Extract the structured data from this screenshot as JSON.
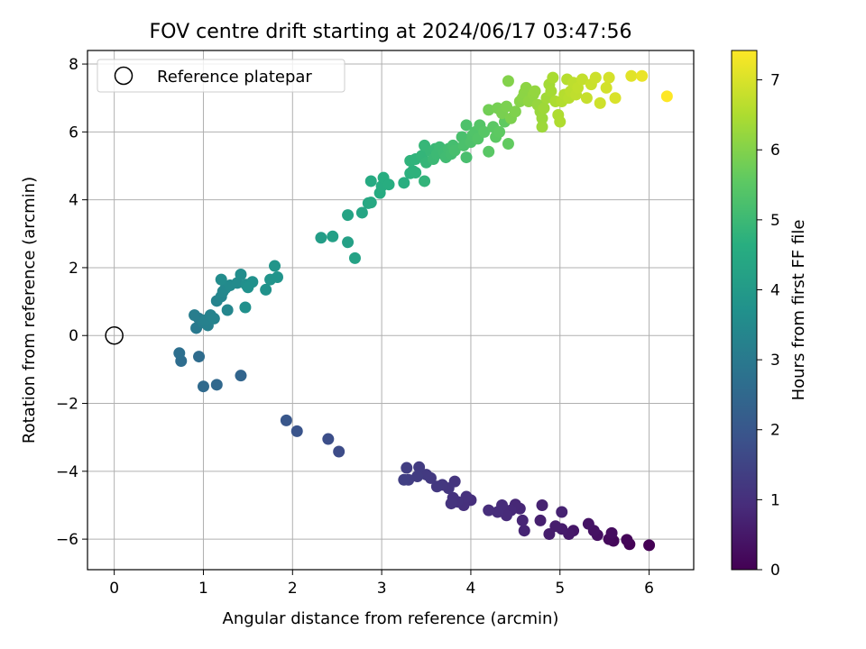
{
  "chart_data": {
    "type": "scatter",
    "title": "FOV centre drift starting at 2024/06/17 03:47:56",
    "xlabel": "Angular distance from reference (arcmin)",
    "ylabel": "Rotation from reference (arcmin)",
    "xlim": [
      -0.3,
      6.5
    ],
    "ylim": [
      -6.9,
      8.4
    ],
    "x_ticks": [
      0,
      1,
      2,
      3,
      4,
      5,
      6
    ],
    "y_ticks": [
      -6,
      -4,
      -2,
      0,
      2,
      4,
      6,
      8
    ],
    "x_tick_labels": [
      "0",
      "1",
      "2",
      "3",
      "4",
      "5",
      "6"
    ],
    "y_tick_labels": [
      "−6",
      "−4",
      "−2",
      "0",
      "2",
      "4",
      "6",
      "8"
    ],
    "grid": true,
    "colormap": "viridis",
    "legend": {
      "placement": "top-left",
      "entries": [
        {
          "label": "Reference platepar",
          "marker": "open-circle"
        }
      ]
    },
    "reference_point": {
      "x": 0,
      "y": 0
    },
    "colorbar": {
      "label": "Hours from first FF file",
      "range": [
        0,
        7.42
      ],
      "ticks": [
        0,
        1,
        2,
        3,
        4,
        5,
        6,
        7
      ],
      "tick_labels": [
        "0",
        "1",
        "2",
        "3",
        "4",
        "5",
        "6",
        "7"
      ]
    },
    "points": [
      [
        6.0,
        -6.18,
        0.0
      ],
      [
        5.78,
        -6.15,
        0.05
      ],
      [
        5.75,
        -6.02,
        0.1
      ],
      [
        5.6,
        -6.05,
        0.15
      ],
      [
        5.55,
        -6.0,
        0.2
      ],
      [
        5.58,
        -5.82,
        0.25
      ],
      [
        5.42,
        -5.88,
        0.3
      ],
      [
        5.38,
        -5.75,
        0.35
      ],
      [
        5.32,
        -5.55,
        0.4
      ],
      [
        5.15,
        -5.75,
        0.45
      ],
      [
        5.1,
        -5.85,
        0.5
      ],
      [
        5.02,
        -5.7,
        0.55
      ],
      [
        4.95,
        -5.62,
        0.58
      ],
      [
        4.88,
        -5.85,
        0.6
      ],
      [
        4.78,
        -5.45,
        0.65
      ],
      [
        4.8,
        -5.0,
        0.7
      ],
      [
        5.02,
        -5.2,
        0.72
      ],
      [
        4.6,
        -5.75,
        0.75
      ],
      [
        4.58,
        -5.45,
        0.78
      ],
      [
        4.55,
        -5.1,
        0.8
      ],
      [
        4.5,
        -4.98,
        0.82
      ],
      [
        4.45,
        -5.15,
        0.85
      ],
      [
        4.4,
        -5.3,
        0.88
      ],
      [
        4.35,
        -5.0,
        0.9
      ],
      [
        4.3,
        -5.2,
        0.92
      ],
      [
        4.2,
        -5.15,
        0.95
      ],
      [
        4.0,
        -4.85,
        0.98
      ],
      [
        3.92,
        -5.0,
        1.0
      ],
      [
        3.95,
        -4.75,
        1.02
      ],
      [
        3.85,
        -4.9,
        1.05
      ],
      [
        3.8,
        -4.78,
        1.08
      ],
      [
        3.78,
        -4.95,
        1.1
      ],
      [
        3.82,
        -4.3,
        1.12
      ],
      [
        3.75,
        -4.5,
        1.15
      ],
      [
        3.68,
        -4.4,
        1.18
      ],
      [
        3.62,
        -4.45,
        1.2
      ],
      [
        3.55,
        -4.2,
        1.22
      ],
      [
        3.5,
        -4.1,
        1.25
      ],
      [
        3.42,
        -3.88,
        1.28
      ],
      [
        3.4,
        -4.15,
        1.3
      ],
      [
        3.3,
        -4.25,
        1.32
      ],
      [
        3.28,
        -3.9,
        1.35
      ],
      [
        3.25,
        -4.25,
        1.38
      ],
      [
        2.52,
        -3.42,
        1.7
      ],
      [
        2.4,
        -3.05,
        1.75
      ],
      [
        2.05,
        -2.82,
        1.9
      ],
      [
        1.93,
        -2.5,
        2.0
      ],
      [
        1.42,
        -1.18,
        2.4
      ],
      [
        1.15,
        -1.45,
        2.5
      ],
      [
        1.0,
        -1.5,
        2.55
      ],
      [
        0.95,
        -0.62,
        2.6
      ],
      [
        0.75,
        -0.75,
        2.65
      ],
      [
        0.73,
        -0.52,
        2.7
      ],
      [
        0.92,
        0.22,
        3.0
      ],
      [
        0.95,
        0.5,
        3.05
      ],
      [
        0.9,
        0.6,
        3.1
      ],
      [
        1.0,
        0.38,
        3.15
      ],
      [
        1.05,
        0.3,
        3.2
      ],
      [
        1.02,
        0.45,
        3.22
      ],
      [
        1.08,
        0.6,
        3.25
      ],
      [
        1.12,
        0.5,
        3.28
      ],
      [
        1.15,
        1.02,
        3.3
      ],
      [
        1.2,
        1.15,
        3.35
      ],
      [
        1.27,
        0.75,
        3.38
      ],
      [
        1.22,
        1.3,
        3.4
      ],
      [
        1.25,
        1.4,
        3.45
      ],
      [
        1.3,
        1.48,
        3.5
      ],
      [
        1.38,
        1.55,
        3.52
      ],
      [
        1.2,
        1.65,
        3.55
      ],
      [
        1.42,
        1.8,
        3.6
      ],
      [
        1.48,
        1.5,
        3.65
      ],
      [
        1.47,
        0.83,
        3.68
      ],
      [
        1.55,
        1.58,
        3.7
      ],
      [
        1.5,
        1.42,
        3.72
      ],
      [
        1.7,
        1.35,
        3.75
      ],
      [
        1.75,
        1.65,
        3.8
      ],
      [
        1.83,
        1.72,
        3.82
      ],
      [
        1.8,
        2.05,
        3.85
      ],
      [
        2.32,
        2.88,
        4.1
      ],
      [
        2.45,
        2.92,
        4.15
      ],
      [
        2.62,
        2.75,
        4.2
      ],
      [
        2.7,
        2.28,
        4.25
      ],
      [
        2.62,
        3.55,
        4.3
      ],
      [
        2.78,
        3.62,
        4.35
      ],
      [
        2.85,
        3.9,
        4.4
      ],
      [
        2.88,
        3.92,
        4.45
      ],
      [
        2.88,
        4.55,
        4.5
      ],
      [
        2.98,
        4.2,
        4.55
      ],
      [
        3.0,
        4.4,
        4.58
      ],
      [
        3.02,
        4.65,
        4.6
      ],
      [
        3.08,
        4.45,
        4.62
      ],
      [
        3.25,
        4.5,
        4.65
      ],
      [
        3.32,
        4.78,
        4.7
      ],
      [
        3.35,
        4.85,
        4.72
      ],
      [
        3.38,
        4.8,
        4.75
      ],
      [
        3.32,
        5.15,
        4.78
      ],
      [
        3.38,
        5.2,
        4.8
      ],
      [
        3.48,
        4.55,
        4.82
      ],
      [
        3.45,
        5.3,
        4.85
      ],
      [
        3.5,
        5.1,
        4.88
      ],
      [
        3.48,
        5.6,
        4.9
      ],
      [
        3.55,
        5.42,
        4.92
      ],
      [
        3.6,
        5.5,
        4.95
      ],
      [
        3.58,
        5.2,
        4.98
      ],
      [
        3.62,
        5.35,
        5.0
      ],
      [
        3.65,
        5.55,
        5.02
      ],
      [
        3.7,
        5.4,
        5.05
      ],
      [
        3.72,
        5.25,
        5.08
      ],
      [
        3.75,
        5.5,
        5.1
      ],
      [
        3.78,
        5.35,
        5.12
      ],
      [
        3.8,
        5.6,
        5.15
      ],
      [
        3.82,
        5.45,
        5.18
      ],
      [
        3.95,
        5.25,
        5.2
      ],
      [
        3.9,
        5.85,
        5.22
      ],
      [
        3.92,
        5.6,
        5.25
      ],
      [
        3.95,
        6.2,
        5.28
      ],
      [
        4.0,
        5.7,
        5.3
      ],
      [
        4.02,
        5.9,
        5.32
      ],
      [
        4.05,
        6.0,
        5.35
      ],
      [
        4.08,
        5.8,
        5.38
      ],
      [
        4.1,
        6.2,
        5.4
      ],
      [
        4.15,
        6.0,
        5.45
      ],
      [
        4.2,
        5.42,
        5.48
      ],
      [
        4.25,
        6.15,
        5.5
      ],
      [
        4.28,
        5.85,
        5.52
      ],
      [
        4.32,
        6.0,
        5.55
      ],
      [
        4.38,
        6.3,
        5.58
      ],
      [
        4.42,
        5.65,
        5.6
      ],
      [
        4.2,
        6.65,
        5.8
      ],
      [
        4.3,
        6.7,
        5.85
      ],
      [
        4.35,
        6.55,
        5.88
      ],
      [
        4.4,
        6.75,
        5.9
      ],
      [
        4.45,
        6.4,
        5.92
      ],
      [
        4.5,
        6.6,
        5.95
      ],
      [
        4.42,
        7.5,
        6.0
      ],
      [
        4.55,
        6.9,
        6.05
      ],
      [
        4.58,
        7.0,
        6.08
      ],
      [
        4.6,
        7.15,
        6.1
      ],
      [
        4.62,
        7.3,
        6.12
      ],
      [
        4.65,
        6.9,
        6.15
      ],
      [
        4.7,
        7.1,
        6.18
      ],
      [
        4.72,
        7.2,
        6.2
      ],
      [
        4.75,
        6.8,
        6.22
      ],
      [
        4.78,
        6.6,
        6.25
      ],
      [
        4.8,
        6.4,
        6.28
      ],
      [
        4.8,
        6.15,
        6.3
      ],
      [
        4.82,
        6.7,
        6.32
      ],
      [
        4.85,
        7.0,
        6.35
      ],
      [
        4.88,
        7.4,
        6.38
      ],
      [
        4.9,
        7.2,
        6.4
      ],
      [
        4.92,
        7.6,
        6.45
      ],
      [
        4.95,
        6.9,
        6.48
      ],
      [
        4.98,
        6.5,
        6.5
      ],
      [
        5.0,
        6.3,
        6.52
      ],
      [
        5.02,
        6.9,
        6.55
      ],
      [
        5.05,
        7.1,
        6.58
      ],
      [
        5.08,
        7.55,
        6.6
      ],
      [
        5.1,
        7.0,
        6.62
      ],
      [
        5.12,
        7.2,
        6.65
      ],
      [
        5.15,
        7.45,
        6.68
      ],
      [
        5.18,
        7.1,
        6.7
      ],
      [
        5.2,
        7.3,
        6.72
      ],
      [
        5.25,
        7.55,
        6.75
      ],
      [
        5.3,
        7.0,
        6.78
      ],
      [
        5.35,
        7.4,
        6.82
      ],
      [
        5.4,
        7.6,
        6.85
      ],
      [
        5.45,
        6.85,
        6.88
      ],
      [
        5.52,
        7.3,
        6.92
      ],
      [
        5.55,
        7.6,
        6.95
      ],
      [
        5.62,
        7.0,
        7.0
      ],
      [
        5.8,
        7.65,
        7.1
      ],
      [
        5.92,
        7.65,
        7.2
      ],
      [
        6.2,
        7.05,
        7.42
      ]
    ]
  }
}
